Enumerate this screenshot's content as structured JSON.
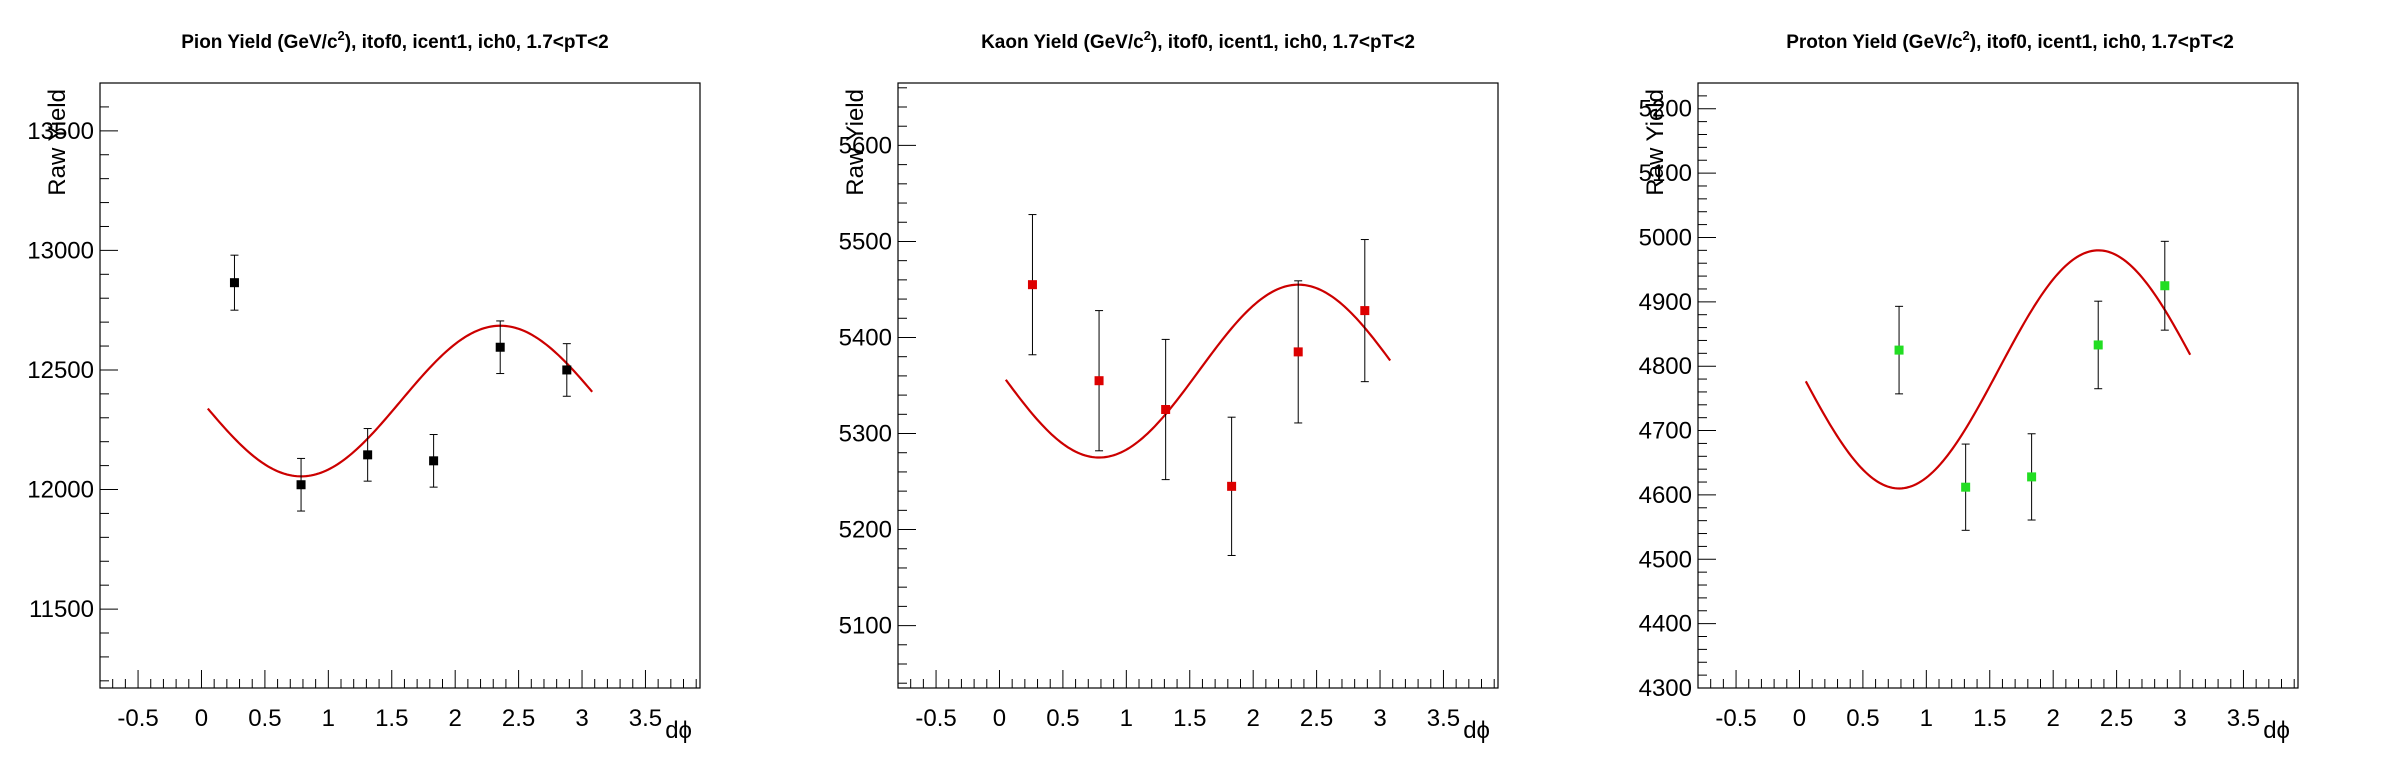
{
  "chart_data": [
    {
      "type": "scatter",
      "title_prefix": "Pion Yield (GeV/c",
      "title_sup": "2",
      "title_suffix": "), itof0, icent1, ich0, 1.7<pT<2",
      "xlabel": "dϕ",
      "ylabel": "Raw Yield",
      "xlim": [
        -0.8,
        3.93
      ],
      "ylim": [
        11170,
        13700
      ],
      "xticks": [
        "-0.5",
        "0",
        "0.5",
        "1",
        "1.5",
        "2",
        "2.5",
        "3",
        "3.5"
      ],
      "yticks": [
        "11500",
        "12000",
        "12500",
        "13000",
        "13500"
      ],
      "marker_color": "#000000",
      "fit_color": "#cc0000",
      "fit": {
        "a": 12370,
        "b": 315,
        "x_range": [
          0.05,
          3.08
        ]
      },
      "series": [
        {
          "x": [
            0.26,
            0.785,
            1.31,
            1.83,
            2.355,
            2.88
          ],
          "y": [
            12865,
            12020,
            12145,
            12120,
            12595,
            12500
          ],
          "err": [
            115,
            110,
            110,
            110,
            110,
            110
          ]
        }
      ]
    },
    {
      "type": "scatter",
      "title_prefix": "Kaon Yield (GeV/c",
      "title_sup": "2",
      "title_suffix": "), itof0, icent1, ich0, 1.7<pT<2",
      "xlabel": "dϕ",
      "ylabel": "Raw Yield",
      "xlim": [
        -0.8,
        3.93
      ],
      "ylim": [
        5035,
        5665
      ],
      "xticks": [
        "-0.5",
        "0",
        "0.5",
        "1",
        "1.5",
        "2",
        "2.5",
        "3",
        "3.5"
      ],
      "yticks": [
        "5100",
        "5200",
        "5300",
        "5400",
        "5500",
        "5600"
      ],
      "marker_color": "#dd0000",
      "fit_color": "#cc0000",
      "fit": {
        "a": 5365,
        "b": 90,
        "x_range": [
          0.05,
          3.08
        ]
      },
      "series": [
        {
          "x": [
            0.26,
            0.785,
            1.31,
            1.83,
            2.355,
            2.88
          ],
          "y": [
            5455,
            5355,
            5325,
            5245,
            5385,
            5428
          ],
          "err": [
            73,
            73,
            73,
            72,
            74,
            74
          ]
        }
      ]
    },
    {
      "type": "scatter",
      "title_prefix": "Proton Yield (GeV/c",
      "title_sup": "2",
      "title_suffix": "), itof0, icent1, ich0, 1.7<pT<2",
      "xlabel": "dϕ",
      "ylabel": "Raw Yield",
      "xlim": [
        -0.8,
        3.93
      ],
      "ylim": [
        4300,
        5240
      ],
      "xticks": [
        "-0.5",
        "0",
        "0.5",
        "1",
        "1.5",
        "2",
        "2.5",
        "3",
        "3.5"
      ],
      "yticks": [
        "4300",
        "4400",
        "4500",
        "4600",
        "4700",
        "4800",
        "4900",
        "5000",
        "5100",
        "5200"
      ],
      "marker_color": "#22dd22",
      "fit_color": "#cc0000",
      "fit": {
        "a": 4795,
        "b": 185,
        "x_range": [
          0.05,
          3.08
        ]
      },
      "series": [
        {
          "x": [
            0.785,
            1.31,
            1.83,
            2.355,
            2.88
          ],
          "y": [
            4825,
            4612,
            4628,
            4833,
            4925
          ],
          "err": [
            68,
            67,
            67,
            68,
            69
          ]
        }
      ]
    }
  ]
}
